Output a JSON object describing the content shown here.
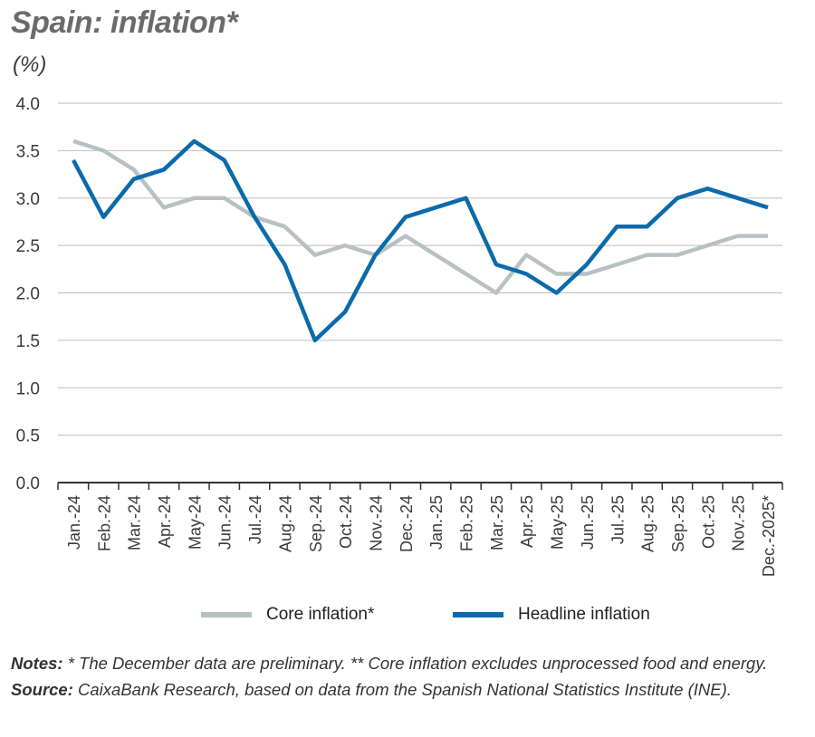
{
  "title": "Spain: inflation*",
  "unit": "(%)",
  "colors": {
    "core": "#b7c1c4",
    "headline": "#0b6aaa",
    "grid": "#bdbdbd",
    "axis": "#333333"
  },
  "legend": {
    "core": "Core inflation*",
    "headline": "Headline inflation"
  },
  "notes": {
    "notes_label": "Notes:",
    "notes_text": " * The December data are preliminary. ** Core inflation excludes unprocessed food and energy.",
    "source_label": "Source:",
    "source_text": " CaixaBank Research, based on data from the Spanish National Statistics Institute (INE)."
  },
  "chart_data": {
    "type": "line",
    "title": "Spain: inflation*",
    "ylabel": "(%)",
    "xlabel": "",
    "ylim": [
      0,
      4
    ],
    "yticks": [
      "0.0",
      "0.5",
      "1.0",
      "1.5",
      "2.0",
      "2.5",
      "3.0",
      "3.5",
      "4.0"
    ],
    "grid": true,
    "legend_position": "bottom",
    "categories": [
      "Jan.-24",
      "Feb.-24",
      "Mar.-24",
      "Apr.-24",
      "May-24",
      "Jun.-24",
      "Jul.-24",
      "Aug.-24",
      "Sep.-24",
      "Oct.-24",
      "Nov.-24",
      "Dec.-24",
      "Jan.-25",
      "Feb.-25",
      "Mar.-25",
      "Apr.-25",
      "May-25",
      "Jun.-25",
      "Jul.-25",
      "Aug.-25",
      "Sep.-25",
      "Oct.-25",
      "Nov.-25",
      "Dec.-2025*"
    ],
    "series": [
      {
        "name": "Core inflation*",
        "values": [
          3.6,
          3.5,
          3.3,
          2.9,
          3.0,
          3.0,
          2.8,
          2.7,
          2.4,
          2.5,
          2.4,
          2.6,
          2.4,
          2.2,
          2.0,
          2.4,
          2.2,
          2.2,
          2.3,
          2.4,
          2.4,
          2.5,
          2.6,
          2.6
        ]
      },
      {
        "name": "Headline inflation",
        "values": [
          3.4,
          2.8,
          3.2,
          3.3,
          3.6,
          3.4,
          2.8,
          2.3,
          1.5,
          1.8,
          2.4,
          2.8,
          2.9,
          3.0,
          2.3,
          2.2,
          2.0,
          2.3,
          2.7,
          2.7,
          3.0,
          3.1,
          3.0,
          2.9
        ]
      }
    ]
  }
}
